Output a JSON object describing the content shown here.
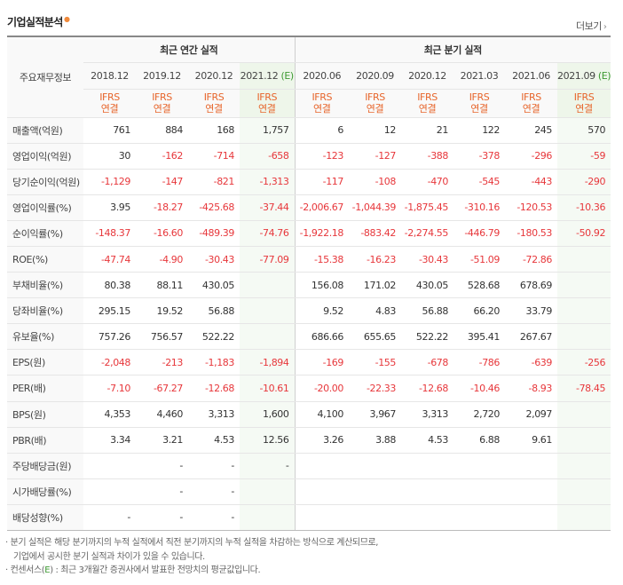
{
  "title": "기업실적분석",
  "more_link": "더보기",
  "more_chev": "›",
  "header": {
    "row_label": "주요재무정보",
    "annual_group": "최근 연간 실적",
    "quarter_group": "최근 분기 실적",
    "periods": [
      "2018.12",
      "2019.12",
      "2020.12",
      "2021.12",
      "2020.06",
      "2020.09",
      "2020.12",
      "2021.03",
      "2021.06",
      "2021.09"
    ],
    "estimate_mark": "(E)",
    "ifrs": "IFRS",
    "consolidated": "연결"
  },
  "rows": [
    {
      "label": "매출액(억원)",
      "values": [
        "761",
        "884",
        "168",
        "1,757",
        "6",
        "12",
        "21",
        "122",
        "245",
        "570"
      ]
    },
    {
      "label": "영업이익(억원)",
      "values": [
        "30",
        "-162",
        "-714",
        "-658",
        "-123",
        "-127",
        "-388",
        "-378",
        "-296",
        "-59"
      ]
    },
    {
      "label": "당기순이익(억원)",
      "values": [
        "-1,129",
        "-147",
        "-821",
        "-1,313",
        "-117",
        "-108",
        "-470",
        "-545",
        "-443",
        "-290"
      ]
    },
    {
      "label": "영업이익률(%)",
      "values": [
        "3.95",
        "-18.27",
        "-425.68",
        "-37.44",
        "-2,006.67",
        "-1,044.39",
        "-1,875.45",
        "-310.16",
        "-120.53",
        "-10.36"
      ]
    },
    {
      "label": "순이익률(%)",
      "values": [
        "-148.37",
        "-16.60",
        "-489.39",
        "-74.76",
        "-1,922.18",
        "-883.42",
        "-2,274.55",
        "-446.79",
        "-180.53",
        "-50.92"
      ]
    },
    {
      "label": "ROE(%)",
      "values": [
        "-47.74",
        "-4.90",
        "-30.43",
        "-77.09",
        "-15.38",
        "-16.23",
        "-30.43",
        "-51.09",
        "-72.86",
        ""
      ]
    },
    {
      "label": "부채비율(%)",
      "values": [
        "80.38",
        "88.11",
        "430.05",
        "",
        "156.08",
        "171.02",
        "430.05",
        "528.68",
        "678.69",
        ""
      ]
    },
    {
      "label": "당좌비율(%)",
      "values": [
        "295.15",
        "19.52",
        "56.88",
        "",
        "9.52",
        "4.83",
        "56.88",
        "66.20",
        "33.79",
        ""
      ]
    },
    {
      "label": "유보율(%)",
      "values": [
        "757.26",
        "756.57",
        "522.22",
        "",
        "686.66",
        "655.65",
        "522.22",
        "395.41",
        "267.67",
        ""
      ]
    },
    {
      "label": "EPS(원)",
      "values": [
        "-2,048",
        "-213",
        "-1,183",
        "-1,894",
        "-169",
        "-155",
        "-678",
        "-786",
        "-639",
        "-256"
      ]
    },
    {
      "label": "PER(배)",
      "values": [
        "-7.10",
        "-67.27",
        "-12.68",
        "-10.61",
        "-20.00",
        "-22.33",
        "-12.68",
        "-10.46",
        "-8.93",
        "-78.45"
      ]
    },
    {
      "label": "BPS(원)",
      "values": [
        "4,353",
        "4,460",
        "3,313",
        "1,600",
        "4,100",
        "3,967",
        "3,313",
        "2,720",
        "2,097",
        ""
      ]
    },
    {
      "label": "PBR(배)",
      "values": [
        "3.34",
        "3.21",
        "4.53",
        "12.56",
        "3.26",
        "3.88",
        "4.53",
        "6.88",
        "9.61",
        ""
      ]
    },
    {
      "label": "주당배당금(원)",
      "values": [
        "",
        "-",
        "-",
        "-",
        "",
        "",
        "",
        "",
        "",
        ""
      ]
    },
    {
      "label": "시가배당률(%)",
      "values": [
        "",
        "-",
        "-",
        "",
        "",
        "",
        "",
        "",
        "",
        ""
      ]
    },
    {
      "label": "배당성향(%)",
      "values": [
        "-",
        "-",
        "-",
        "",
        "",
        "",
        "",
        "",
        "",
        ""
      ]
    }
  ],
  "notes": {
    "line1": "분기 실적은 해당 분기까지의 누적 실적에서 직전 분기까지의 누적 실적을 차감하는 방식으로 계산되므로,",
    "line2": "기업에서 공시한 분기 실적과 차이가 있을 수 있습니다.",
    "line3_prefix": "컨센서스(",
    "line3_e": "E",
    "line3_suffix": ") : 최근 3개월간 증권사에서 발표한 전망치의 평균값입니다.",
    "bullet": "·"
  },
  "colors": {
    "negative": "#e7373b",
    "ifrs": "#e7652b",
    "estimate": "#3d9a32"
  }
}
